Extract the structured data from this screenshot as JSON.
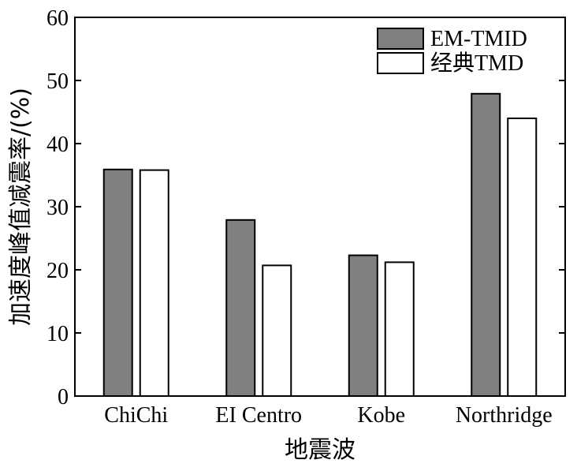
{
  "chart_data": {
    "type": "bar",
    "title": "",
    "xlabel": "地震波",
    "ylabel": "加速度峰值减震率/(%)",
    "categories": [
      "ChiChi",
      "EI Centro",
      "Kobe",
      "Northridge"
    ],
    "series": [
      {
        "name": "EM-TMID",
        "values": [
          35.9,
          27.9,
          22.3,
          47.9
        ],
        "color": "#808080"
      },
      {
        "name": "经典TMD",
        "values": [
          35.8,
          20.7,
          21.2,
          44.0
        ],
        "color": "#ffffff"
      }
    ],
    "ylim": [
      0,
      60
    ],
    "yticks": [
      0,
      10,
      20,
      30,
      40,
      50,
      60
    ],
    "grid": false,
    "legend_position": "top-right"
  }
}
